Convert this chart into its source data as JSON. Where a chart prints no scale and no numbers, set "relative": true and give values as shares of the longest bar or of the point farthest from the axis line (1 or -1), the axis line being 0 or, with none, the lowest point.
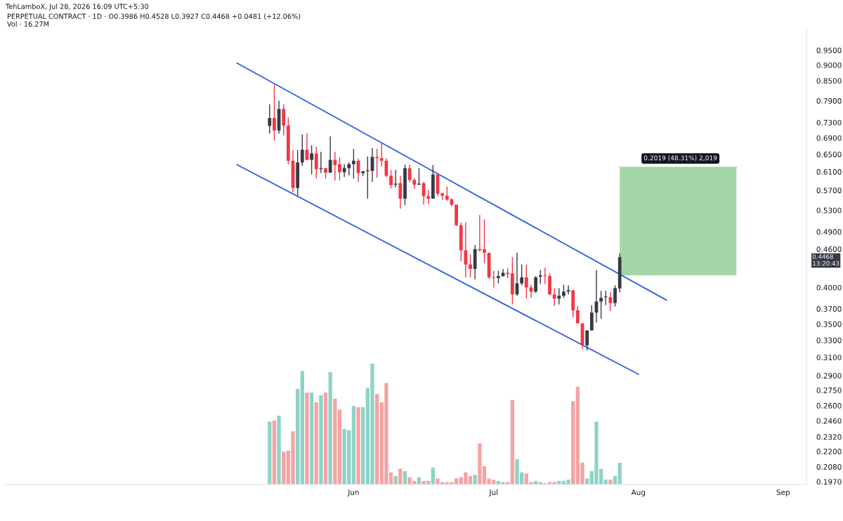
{
  "chart_data": [
    {
      "type": "candlestick",
      "title": "PERPETUAL CONTRACT · 1D · O0.3986 H0.4528 L0.3927 C0.4468 +0.0481 (+12.06%)",
      "log": true,
      "x": [
        "2026-05-14",
        "2026-05-15",
        "2026-05-16",
        "2026-05-17",
        "2026-05-18",
        "2026-05-19",
        "2026-05-20",
        "2026-05-21",
        "2026-05-22",
        "2026-05-23",
        "2026-05-24",
        "2026-05-25",
        "2026-05-26",
        "2026-05-27",
        "2026-05-28",
        "2026-05-29",
        "2026-05-30",
        "2026-05-31",
        "2026-06-01",
        "2026-06-02",
        "2026-06-03",
        "2026-06-04",
        "2026-06-05",
        "2026-06-06",
        "2026-06-07",
        "2026-06-08",
        "2026-06-09",
        "2026-06-10",
        "2026-06-11",
        "2026-06-12",
        "2026-06-13",
        "2026-06-14",
        "2026-06-15",
        "2026-06-16",
        "2026-06-17",
        "2026-06-18",
        "2026-06-19",
        "2026-06-20",
        "2026-06-21",
        "2026-06-22",
        "2026-06-23",
        "2026-06-24",
        "2026-06-25",
        "2026-06-26",
        "2026-06-27",
        "2026-06-28",
        "2026-06-29",
        "2026-06-30",
        "2026-07-01",
        "2026-07-02",
        "2026-07-03",
        "2026-07-04",
        "2026-07-05",
        "2026-07-06",
        "2026-07-07",
        "2026-07-08",
        "2026-07-09",
        "2026-07-10",
        "2026-07-11",
        "2026-07-12",
        "2026-07-13",
        "2026-07-14",
        "2026-07-15",
        "2026-07-16",
        "2026-07-17",
        "2026-07-18",
        "2026-07-19",
        "2026-07-20",
        "2026-07-21",
        "2026-07-22",
        "2026-07-23",
        "2026-07-24",
        "2026-07-25",
        "2026-07-26",
        "2026-07-27",
        "2026-07-28"
      ],
      "ohlc": [
        [
          0.721,
          0.78,
          0.701,
          0.742
        ],
        [
          0.742,
          0.838,
          0.683,
          0.709
        ],
        [
          0.709,
          0.79,
          0.701,
          0.767
        ],
        [
          0.767,
          0.78,
          0.696,
          0.722
        ],
        [
          0.722,
          0.744,
          0.627,
          0.635
        ],
        [
          0.635,
          0.66,
          0.566,
          0.575
        ],
        [
          0.575,
          0.66,
          0.559,
          0.631
        ],
        [
          0.631,
          0.699,
          0.623,
          0.661
        ],
        [
          0.661,
          0.702,
          0.636,
          0.637
        ],
        [
          0.637,
          0.672,
          0.604,
          0.652
        ],
        [
          0.652,
          0.668,
          0.595,
          0.616
        ],
        [
          0.616,
          0.656,
          0.607,
          0.618
        ],
        [
          0.618,
          0.619,
          0.595,
          0.608
        ],
        [
          0.608,
          0.694,
          0.608,
          0.637
        ],
        [
          0.637,
          0.656,
          0.591,
          0.625
        ],
        [
          0.627,
          0.643,
          0.591,
          0.609
        ],
        [
          0.609,
          0.627,
          0.598,
          0.618
        ],
        [
          0.618,
          0.631,
          0.602,
          0.627
        ],
        [
          0.627,
          0.663,
          0.595,
          0.635
        ],
        [
          0.635,
          0.64,
          0.587,
          0.607
        ],
        [
          0.607,
          0.612,
          0.601,
          0.611
        ],
        [
          0.611,
          0.645,
          0.553,
          0.613
        ],
        [
          0.612,
          0.665,
          0.588,
          0.644
        ],
        [
          0.644,
          0.663,
          0.597,
          0.641
        ],
        [
          0.641,
          0.676,
          0.622,
          0.635
        ],
        [
          0.635,
          0.641,
          0.598,
          0.601
        ],
        [
          0.601,
          0.614,
          0.574,
          0.581
        ],
        [
          0.582,
          0.614,
          0.576,
          0.584
        ],
        [
          0.585,
          0.601,
          0.533,
          0.553
        ],
        [
          0.553,
          0.626,
          0.54,
          0.618
        ],
        [
          0.618,
          0.626,
          0.587,
          0.592
        ],
        [
          0.592,
          0.596,
          0.573,
          0.582
        ],
        [
          0.582,
          0.618,
          0.581,
          0.584
        ],
        [
          0.585,
          0.588,
          0.541,
          0.558
        ],
        [
          0.558,
          0.571,
          0.542,
          0.553
        ],
        [
          0.553,
          0.625,
          0.553,
          0.604
        ],
        [
          0.604,
          0.606,
          0.558,
          0.563
        ],
        [
          0.564,
          0.564,
          0.55,
          0.559
        ],
        [
          0.559,
          0.578,
          0.549,
          0.551
        ],
        [
          0.552,
          0.553,
          0.537,
          0.541
        ],
        [
          0.541,
          0.541,
          0.5,
          0.502
        ],
        [
          0.502,
          0.507,
          0.44,
          0.458
        ],
        [
          0.458,
          0.507,
          0.415,
          0.435
        ],
        [
          0.435,
          0.451,
          0.415,
          0.428
        ],
        [
          0.428,
          0.467,
          0.412,
          0.46
        ],
        [
          0.46,
          0.521,
          0.456,
          0.458
        ],
        [
          0.46,
          0.513,
          0.437,
          0.454
        ],
        [
          0.454,
          0.454,
          0.413,
          0.415
        ],
        [
          0.415,
          0.425,
          0.4,
          0.414
        ],
        [
          0.414,
          0.425,
          0.406,
          0.417
        ],
        [
          0.417,
          0.428,
          0.416,
          0.422
        ],
        [
          0.422,
          0.429,
          0.414,
          0.42
        ],
        [
          0.421,
          0.447,
          0.376,
          0.39
        ],
        [
          0.39,
          0.454,
          0.388,
          0.406
        ],
        [
          0.406,
          0.435,
          0.403,
          0.415
        ],
        [
          0.415,
          0.435,
          0.384,
          0.4
        ],
        [
          0.4,
          0.404,
          0.385,
          0.394
        ],
        [
          0.394,
          0.417,
          0.392,
          0.415
        ],
        [
          0.416,
          0.426,
          0.405,
          0.418
        ],
        [
          0.418,
          0.43,
          0.405,
          0.417
        ],
        [
          0.417,
          0.421,
          0.389,
          0.39
        ],
        [
          0.39,
          0.399,
          0.374,
          0.384
        ],
        [
          0.384,
          0.399,
          0.376,
          0.388
        ],
        [
          0.388,
          0.404,
          0.385,
          0.394
        ],
        [
          0.394,
          0.403,
          0.39,
          0.396
        ],
        [
          0.396,
          0.396,
          0.359,
          0.368
        ],
        [
          0.368,
          0.374,
          0.351,
          0.351
        ],
        [
          0.351,
          0.351,
          0.32,
          0.324
        ],
        [
          0.324,
          0.342,
          0.318,
          0.342
        ],
        [
          0.342,
          0.375,
          0.342,
          0.365
        ],
        [
          0.365,
          0.426,
          0.352,
          0.38
        ],
        [
          0.38,
          0.395,
          0.357,
          0.385
        ],
        [
          0.386,
          0.395,
          0.375,
          0.387
        ],
        [
          0.386,
          0.393,
          0.367,
          0.378
        ],
        [
          0.378,
          0.403,
          0.373,
          0.399
        ],
        [
          0.3986,
          0.4528,
          0.3927,
          0.4468
        ]
      ],
      "colors": [
        "#363a45",
        "#f23645",
        "#363a45",
        "#f23645",
        "#f23645",
        "#f23645",
        "#363a45",
        "#363a45",
        "#f23645",
        "#363a45",
        "#f23645",
        "#363a45",
        "#f23645",
        "#363a45",
        "#f23645",
        "#f23645",
        "#363a45",
        "#363a45",
        "#363a45",
        "#f23645",
        "#363a45",
        "#363a45",
        "#363a45",
        "#f23645",
        "#f23645",
        "#f23645",
        "#f23645",
        "#363a45",
        "#f23645",
        "#363a45",
        "#f23645",
        "#f23645",
        "#363a45",
        "#f23645",
        "#f23645",
        "#363a45",
        "#f23645",
        "#f23645",
        "#f23645",
        "#f23645",
        "#f23645",
        "#f23645",
        "#f23645",
        "#f23645",
        "#363a45",
        "#f23645",
        "#f23645",
        "#f23645",
        "#f23645",
        "#363a45",
        "#363a45",
        "#f23645",
        "#f23645",
        "#363a45",
        "#363a45",
        "#f23645",
        "#f23645",
        "#363a45",
        "#363a45",
        "#f23645",
        "#f23645",
        "#f23645",
        "#363a45",
        "#363a45",
        "#363a45",
        "#f23645",
        "#f23645",
        "#f23645",
        "#363a45",
        "#363a45",
        "#363a45",
        "#363a45",
        "#363a45",
        "#f23645",
        "#363a45",
        "#363a45"
      ],
      "series": [
        {
          "type": "line",
          "x": [
            "2026-05-07",
            "2026-08-07"
          ],
          "values": [
            0.907,
            0.382
          ],
          "color": "#2f5fe0"
        },
        {
          "type": "line",
          "x": [
            "2026-05-07",
            "2026-08-01"
          ],
          "values": [
            0.626,
            0.2915
          ],
          "color": "#2f5fe0"
        },
        {
          "type": "line",
          "x": [
            "2026-07-28",
            "2026-08-22"
          ],
          "values": [
            0.6198,
            0.6198
          ],
          "lower": [
            0.4179,
            0.4179
          ],
          "upper": [
            0.6198,
            0.6198
          ],
          "color": "#a5d6a7"
        }
      ],
      "xlim": [
        "2026-03-18",
        "2026-09-06"
      ],
      "xticks": [
        {
          "value": "2026-06-01",
          "label": "Jun"
        },
        {
          "value": "2026-07-01",
          "label": "Jul"
        },
        {
          "value": "2026-08-01",
          "label": "Aug"
        },
        {
          "value": "2026-09-01",
          "label": "Sep"
        }
      ],
      "ylim": [
        0.195,
        1.03
      ],
      "yticks": [
        {
          "value": 0.95,
          "label": "0.9500"
        },
        {
          "value": 0.9,
          "label": "0.9000"
        },
        {
          "value": 0.85,
          "label": "0.8500"
        },
        {
          "value": 0.79,
          "label": "0.7900"
        },
        {
          "value": 0.73,
          "label": "0.7300"
        },
        {
          "value": 0.69,
          "label": "0.6900"
        },
        {
          "value": 0.65,
          "label": "0.6500"
        },
        {
          "value": 0.61,
          "label": "0.6100"
        },
        {
          "value": 0.57,
          "label": "0.5700"
        },
        {
          "value": 0.53,
          "label": "0.5300"
        },
        {
          "value": 0.49,
          "label": "0.4900"
        },
        {
          "value": 0.46,
          "label": "0.4600"
        },
        {
          "value": 0.4,
          "label": "0.4000"
        },
        {
          "value": 0.37,
          "label": "0.3700"
        },
        {
          "value": 0.35,
          "label": "0.3500"
        },
        {
          "value": 0.33,
          "label": "0.3300"
        },
        {
          "value": 0.31,
          "label": "0.3100"
        },
        {
          "value": 0.29,
          "label": "0.2900"
        },
        {
          "value": 0.275,
          "label": "0.2750"
        },
        {
          "value": 0.26,
          "label": "0.2600"
        },
        {
          "value": 0.246,
          "label": "0.2460"
        },
        {
          "value": 0.232,
          "label": "0.2320"
        },
        {
          "value": 0.22,
          "label": "0.2200"
        },
        {
          "value": 0.208,
          "label": "0.2080"
        },
        {
          "value": 0.197,
          "label": "0.1970"
        }
      ],
      "annotations": [
        "TehLamboX, Jul 28, 2026 16:09 UTC+5:30",
        "0.4468\n13:20:43",
        {
          "text": "0.2019 (48.31%) 2,019",
          "x": "2026-08-10",
          "y": 0.6198
        }
      ]
    },
    {
      "type": "bar",
      "title": "Vol · 16.27M",
      "relative": true,
      "tick_labels": false,
      "x": [
        "2026-05-14",
        "2026-05-15",
        "2026-05-16",
        "2026-05-17",
        "2026-05-18",
        "2026-05-19",
        "2026-05-20",
        "2026-05-21",
        "2026-05-22",
        "2026-05-23",
        "2026-05-24",
        "2026-05-25",
        "2026-05-26",
        "2026-05-27",
        "2026-05-28",
        "2026-05-29",
        "2026-05-30",
        "2026-05-31",
        "2026-06-01",
        "2026-06-02",
        "2026-06-03",
        "2026-06-04",
        "2026-06-05",
        "2026-06-06",
        "2026-06-07",
        "2026-06-08",
        "2026-06-09",
        "2026-06-10",
        "2026-06-11",
        "2026-06-12",
        "2026-06-13",
        "2026-06-14",
        "2026-06-15",
        "2026-06-16",
        "2026-06-17",
        "2026-06-18",
        "2026-06-19",
        "2026-06-20",
        "2026-06-21",
        "2026-06-22",
        "2026-06-23",
        "2026-06-24",
        "2026-06-25",
        "2026-06-26",
        "2026-06-27",
        "2026-06-28",
        "2026-06-29",
        "2026-06-30",
        "2026-07-01",
        "2026-07-02",
        "2026-07-03",
        "2026-07-04",
        "2026-07-05",
        "2026-07-06",
        "2026-07-07",
        "2026-07-08",
        "2026-07-09",
        "2026-07-10",
        "2026-07-11",
        "2026-07-12",
        "2026-07-13",
        "2026-07-14",
        "2026-07-15",
        "2026-07-16",
        "2026-07-17",
        "2026-07-18",
        "2026-07-19",
        "2026-07-20",
        "2026-07-21",
        "2026-07-22",
        "2026-07-23",
        "2026-07-24",
        "2026-07-25",
        "2026-07-26",
        "2026-07-27",
        "2026-07-28"
      ],
      "values": [
        0.52,
        0.53,
        0.57,
        0.27,
        0.28,
        0.44,
        0.79,
        0.94,
        0.76,
        0.76,
        0.68,
        0.74,
        0.76,
        0.93,
        0.71,
        0.62,
        0.46,
        0.45,
        0.65,
        0.64,
        0.64,
        0.8,
        1.0,
        0.75,
        0.68,
        0.84,
        0.1,
        0.07,
        0.13,
        0.11,
        0.06,
        0.03,
        0.06,
        0.03,
        0.03,
        0.14,
        0.05,
        0.02,
        0.02,
        0.02,
        0.05,
        0.06,
        0.1,
        0.07,
        0.08,
        0.34,
        0.15,
        0.05,
        0.04,
        0.03,
        0.02,
        0.02,
        0.7,
        0.21,
        0.1,
        0.09,
        0.02,
        0.03,
        0.02,
        0.01,
        0.02,
        0.02,
        0.03,
        0.03,
        0.04,
        0.69,
        0.81,
        0.18,
        0.05,
        0.11,
        0.52,
        0.13,
        0.04,
        0.04,
        0.07,
        0.18
      ],
      "colors": [
        "#8fd2c6",
        "#f5a3a3",
        "#8fd2c6",
        "#f5a3a3",
        "#f5a3a3",
        "#f5a3a3",
        "#8fd2c6",
        "#8fd2c6",
        "#f5a3a3",
        "#8fd2c6",
        "#f5a3a3",
        "#8fd2c6",
        "#f5a3a3",
        "#8fd2c6",
        "#f5a3a3",
        "#f5a3a3",
        "#8fd2c6",
        "#8fd2c6",
        "#8fd2c6",
        "#f5a3a3",
        "#8fd2c6",
        "#8fd2c6",
        "#8fd2c6",
        "#f5a3a3",
        "#f5a3a3",
        "#f5a3a3",
        "#f5a3a3",
        "#8fd2c6",
        "#f5a3a3",
        "#8fd2c6",
        "#f5a3a3",
        "#f5a3a3",
        "#8fd2c6",
        "#f5a3a3",
        "#f5a3a3",
        "#8fd2c6",
        "#f5a3a3",
        "#f5a3a3",
        "#f5a3a3",
        "#f5a3a3",
        "#f5a3a3",
        "#f5a3a3",
        "#f5a3a3",
        "#f5a3a3",
        "#8fd2c6",
        "#f5a3a3",
        "#f5a3a3",
        "#f5a3a3",
        "#f5a3a3",
        "#8fd2c6",
        "#8fd2c6",
        "#f5a3a3",
        "#f5a3a3",
        "#8fd2c6",
        "#8fd2c6",
        "#f5a3a3",
        "#f5a3a3",
        "#8fd2c6",
        "#8fd2c6",
        "#f5a3a3",
        "#f5a3a3",
        "#f5a3a3",
        "#8fd2c6",
        "#8fd2c6",
        "#8fd2c6",
        "#f5a3a3",
        "#f5a3a3",
        "#f5a3a3",
        "#8fd2c6",
        "#8fd2c6",
        "#8fd2c6",
        "#8fd2c6",
        "#8fd2c6",
        "#f5a3a3",
        "#8fd2c6",
        "#8fd2c6"
      ],
      "xlim": [
        "2026-03-18",
        "2026-09-06"
      ]
    }
  ]
}
